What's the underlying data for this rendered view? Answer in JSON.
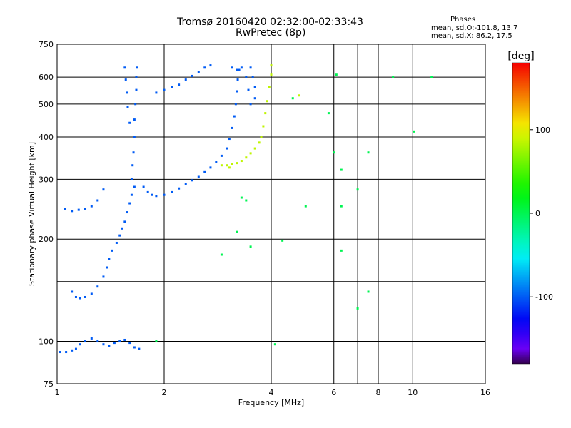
{
  "chart_data": {
    "type": "scatter",
    "title": "Tromsø 20160420 02:32:00-02:33:43",
    "subtitle": "RwPretec (8p)",
    "xlabel": "Frequency [MHz]",
    "ylabel": "Stationary phase Virtual Height [km]",
    "xscale": "log",
    "yscale": "log",
    "xlim": [
      1,
      16
    ],
    "ylim": [
      75,
      750
    ],
    "xticks": [
      1,
      2,
      4,
      6,
      8,
      10,
      16
    ],
    "xticks_minor": [
      7
    ],
    "yticks": [
      75,
      100,
      200,
      300,
      400,
      500,
      600,
      750
    ],
    "yticks_minor": [
      150
    ],
    "grid": true,
    "phases_legend": {
      "title": "Phases",
      "line1": "mean, sd,O:-101.8, 13.7",
      "line2": "mean, sd,X:  86.2, 17.5"
    },
    "colorbar": {
      "label": "[deg]",
      "ticks": [
        100,
        0,
        -100
      ],
      "range": [
        -180,
        180
      ]
    },
    "series": [
      {
        "kind": "O-trace",
        "color_phase": -100,
        "points": [
          [
            1.02,
            93
          ],
          [
            1.06,
            93
          ],
          [
            1.1,
            94
          ],
          [
            1.13,
            95
          ],
          [
            1.16,
            98
          ],
          [
            1.2,
            100
          ],
          [
            1.25,
            102
          ],
          [
            1.3,
            100
          ],
          [
            1.35,
            98
          ],
          [
            1.4,
            97
          ],
          [
            1.45,
            99
          ],
          [
            1.5,
            100
          ],
          [
            1.55,
            101
          ],
          [
            1.6,
            99
          ],
          [
            1.65,
            96
          ],
          [
            1.7,
            95
          ],
          [
            1.1,
            140
          ],
          [
            1.13,
            135
          ],
          [
            1.16,
            134
          ],
          [
            1.2,
            135
          ],
          [
            1.25,
            138
          ],
          [
            1.3,
            145
          ],
          [
            1.35,
            155
          ],
          [
            1.38,
            165
          ],
          [
            1.4,
            175
          ],
          [
            1.43,
            185
          ],
          [
            1.47,
            195
          ],
          [
            1.5,
            205
          ],
          [
            1.52,
            215
          ],
          [
            1.55,
            225
          ],
          [
            1.57,
            240
          ],
          [
            1.6,
            255
          ],
          [
            1.62,
            270
          ],
          [
            1.65,
            285
          ],
          [
            1.62,
            300
          ],
          [
            1.63,
            330
          ],
          [
            1.64,
            360
          ],
          [
            1.65,
            400
          ],
          [
            1.65,
            450
          ],
          [
            1.66,
            500
          ],
          [
            1.67,
            550
          ],
          [
            1.67,
            600
          ],
          [
            1.68,
            640
          ],
          [
            1.55,
            640
          ],
          [
            1.56,
            590
          ],
          [
            1.57,
            540
          ],
          [
            1.58,
            490
          ],
          [
            1.6,
            440
          ],
          [
            1.75,
            285
          ],
          [
            1.8,
            275
          ],
          [
            1.85,
            270
          ],
          [
            1.9,
            268
          ],
          [
            2.0,
            270
          ],
          [
            2.1,
            275
          ],
          [
            2.2,
            282
          ],
          [
            2.3,
            290
          ],
          [
            2.4,
            298
          ],
          [
            2.5,
            305
          ],
          [
            2.6,
            315
          ],
          [
            2.7,
            325
          ],
          [
            2.8,
            338
          ],
          [
            2.9,
            352
          ],
          [
            3.0,
            370
          ],
          [
            3.05,
            395
          ],
          [
            3.1,
            425
          ],
          [
            3.15,
            460
          ],
          [
            3.18,
            500
          ],
          [
            3.2,
            545
          ],
          [
            3.22,
            590
          ],
          [
            3.25,
            630
          ],
          [
            3.1,
            640
          ],
          [
            3.2,
            630
          ],
          [
            3.3,
            640
          ],
          [
            3.4,
            600
          ],
          [
            3.5,
            640
          ],
          [
            3.55,
            600
          ],
          [
            3.6,
            560
          ],
          [
            3.6,
            520
          ],
          [
            3.5,
            500
          ],
          [
            3.45,
            550
          ],
          [
            1.9,
            540
          ],
          [
            2.0,
            550
          ],
          [
            2.1,
            560
          ],
          [
            2.2,
            570
          ],
          [
            2.3,
            590
          ],
          [
            2.4,
            605
          ],
          [
            2.5,
            620
          ],
          [
            2.6,
            640
          ],
          [
            2.7,
            650
          ],
          [
            1.05,
            245
          ],
          [
            1.1,
            242
          ],
          [
            1.15,
            244
          ],
          [
            1.2,
            245
          ],
          [
            1.25,
            250
          ],
          [
            1.3,
            260
          ],
          [
            1.35,
            280
          ]
        ]
      },
      {
        "kind": "X-trace",
        "color_phase": 86,
        "points": [
          [
            3.0,
            330
          ],
          [
            3.1,
            332
          ],
          [
            3.2,
            335
          ],
          [
            3.3,
            340
          ],
          [
            3.4,
            348
          ],
          [
            3.5,
            358
          ],
          [
            3.6,
            370
          ],
          [
            3.7,
            385
          ],
          [
            3.75,
            400
          ],
          [
            3.8,
            430
          ],
          [
            3.85,
            470
          ],
          [
            3.9,
            510
          ],
          [
            3.95,
            560
          ],
          [
            4.0,
            610
          ],
          [
            4.0,
            650
          ],
          [
            4.8,
            530
          ],
          [
            3.05,
            325
          ],
          [
            2.9,
            330
          ]
        ]
      },
      {
        "kind": "scattered",
        "color_phase": 0,
        "points": [
          [
            3.5,
            190
          ],
          [
            3.2,
            210
          ],
          [
            2.9,
            180
          ],
          [
            4.1,
            98
          ],
          [
            4.3,
            198
          ],
          [
            5.0,
            250
          ],
          [
            5.8,
            470
          ],
          [
            6.0,
            360
          ],
          [
            6.3,
            320
          ],
          [
            6.3,
            250
          ],
          [
            6.3,
            185
          ],
          [
            7.5,
            360
          ],
          [
            7.5,
            140
          ],
          [
            7.0,
            125
          ],
          [
            7.0,
            280
          ],
          [
            10.1,
            415
          ],
          [
            6.1,
            610
          ],
          [
            8.8,
            600
          ],
          [
            11.3,
            600
          ],
          [
            1.9,
            100
          ],
          [
            4.6,
            520
          ],
          [
            3.4,
            260
          ],
          [
            3.3,
            265
          ]
        ]
      }
    ]
  }
}
